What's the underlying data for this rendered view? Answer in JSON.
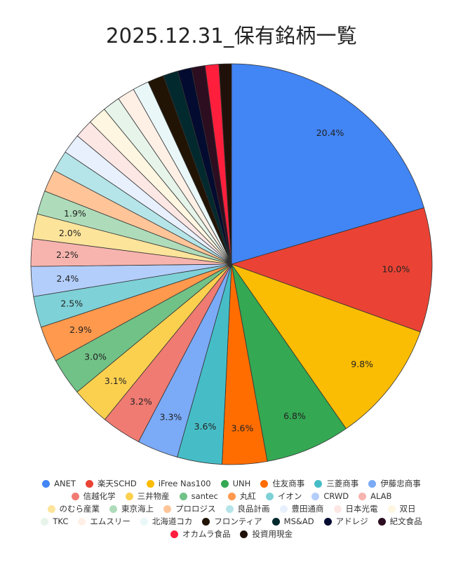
{
  "chart_data": {
    "type": "pie",
    "title": "2025.12.31_保有銘柄一覧",
    "legend_position": "bottom",
    "slices": [
      {
        "name": "ANET",
        "value": 20.4,
        "label": "20.4%",
        "color": "#4285F4"
      },
      {
        "name": "楽天SCHD",
        "value": 10.0,
        "label": "10.0%",
        "color": "#EA4335"
      },
      {
        "name": "iFree Nas100",
        "value": 9.8,
        "label": "9.8%",
        "color": "#FBBC04"
      },
      {
        "name": "UNH",
        "value": 6.8,
        "label": "6.8%",
        "color": "#34A853"
      },
      {
        "name": "住友商事",
        "value": 3.6,
        "label": "3.6%",
        "color": "#FF6D01"
      },
      {
        "name": "三菱商事",
        "value": 3.6,
        "label": "3.6%",
        "color": "#46BDC6"
      },
      {
        "name": "伊藤忠商事",
        "value": 3.3,
        "label": "3.3%",
        "color": "#7BAAF7"
      },
      {
        "name": "信越化学",
        "value": 3.2,
        "label": "3.2%",
        "color": "#F07B72"
      },
      {
        "name": "三井物産",
        "value": 3.1,
        "label": "3.1%",
        "color": "#FCD04F"
      },
      {
        "name": "santec",
        "value": 3.0,
        "label": "3.0%",
        "color": "#71C287"
      },
      {
        "name": "丸紅",
        "value": 2.9,
        "label": "2.9%",
        "color": "#FF994D"
      },
      {
        "name": "イオン",
        "value": 2.5,
        "label": "2.5%",
        "color": "#7ED1D7"
      },
      {
        "name": "CRWD",
        "value": 2.4,
        "label": "2.4%",
        "color": "#B3CEFB"
      },
      {
        "name": "ALAB",
        "value": 2.2,
        "label": "2.2%",
        "color": "#F7B4AE"
      },
      {
        "name": "のむら産業",
        "value": 2.0,
        "label": "2.0%",
        "color": "#FDE49B"
      },
      {
        "name": "東京海上",
        "value": 1.9,
        "label": "1.9%",
        "color": "#AEDCBA"
      },
      {
        "name": "プロロジス",
        "value": 1.8,
        "label": "",
        "color": "#FFC599"
      },
      {
        "name": "良品計画",
        "value": 1.7,
        "label": "",
        "color": "#B5E5E8"
      },
      {
        "name": "豊田通商",
        "value": 1.6,
        "label": "",
        "color": "#E8F0FE"
      },
      {
        "name": "日本光電",
        "value": 1.5,
        "label": "",
        "color": "#FDE7E5"
      },
      {
        "name": "双日",
        "value": 1.5,
        "label": "",
        "color": "#FEF6E0"
      },
      {
        "name": "TKC",
        "value": 1.4,
        "label": "",
        "color": "#E6F4EA"
      },
      {
        "name": "エムスリー",
        "value": 1.4,
        "label": "",
        "color": "#FFF0E6"
      },
      {
        "name": "北海道コカ",
        "value": 1.3,
        "label": "",
        "color": "#E9F7F8"
      },
      {
        "name": "フロンティア",
        "value": 1.3,
        "label": "",
        "color": "#211405"
      },
      {
        "name": "MS&AD",
        "value": 1.2,
        "label": "",
        "color": "#02292E"
      },
      {
        "name": "アドレジ",
        "value": 1.1,
        "label": "",
        "color": "#030B30"
      },
      {
        "name": "紀文食品",
        "value": 1.1,
        "label": "",
        "color": "#2C0E20"
      },
      {
        "name": "オカムラ食品",
        "value": 1.1,
        "label": "",
        "color": "#FF1F3D"
      },
      {
        "name": "投資用現金",
        "value": 1.0,
        "label": "",
        "color": "#1F1109"
      }
    ]
  }
}
